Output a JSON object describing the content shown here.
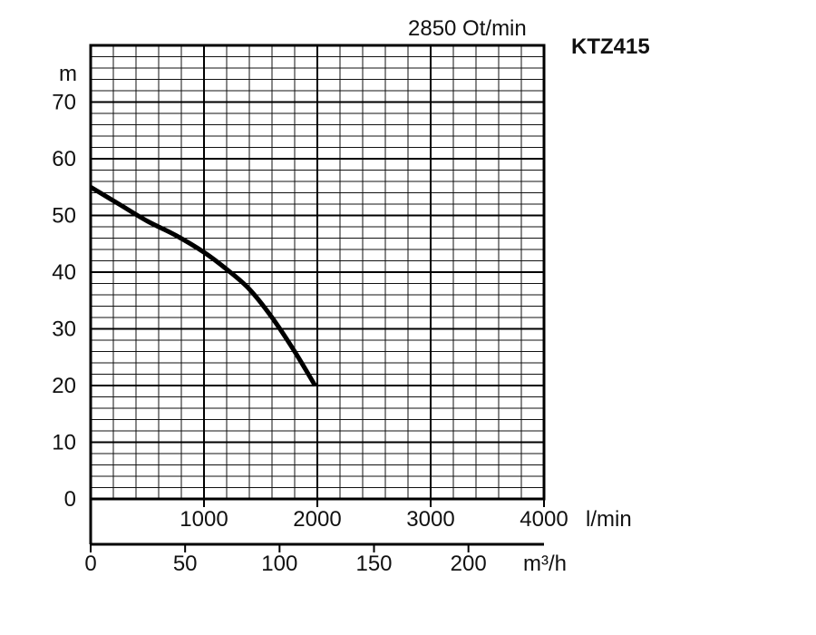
{
  "chart_data": {
    "type": "line",
    "model": "KTZ415",
    "speed_label": "2850 Ot/min",
    "ylabel": "m",
    "x_unit_lmin": "l/min",
    "x_unit_m3h": "m³/h",
    "ylim": [
      0,
      80
    ],
    "xlim_lmin": [
      0,
      4000
    ],
    "xlim_m3h": [
      0,
      240
    ],
    "y_ticks": [
      0,
      10,
      20,
      30,
      40,
      50,
      60,
      70
    ],
    "x_ticks_lmin": [
      1000,
      2000,
      3000,
      4000
    ],
    "x_ticks_m3h": [
      0,
      50,
      100,
      150,
      200
    ],
    "grid": true,
    "series": [
      {
        "x": [
          0,
          250,
          500,
          750,
          1000,
          1200,
          1400,
          1600,
          1800,
          1980
        ],
        "y": [
          55,
          52,
          49,
          46.5,
          43.5,
          40.5,
          37,
          32,
          26,
          20
        ]
      }
    ]
  }
}
